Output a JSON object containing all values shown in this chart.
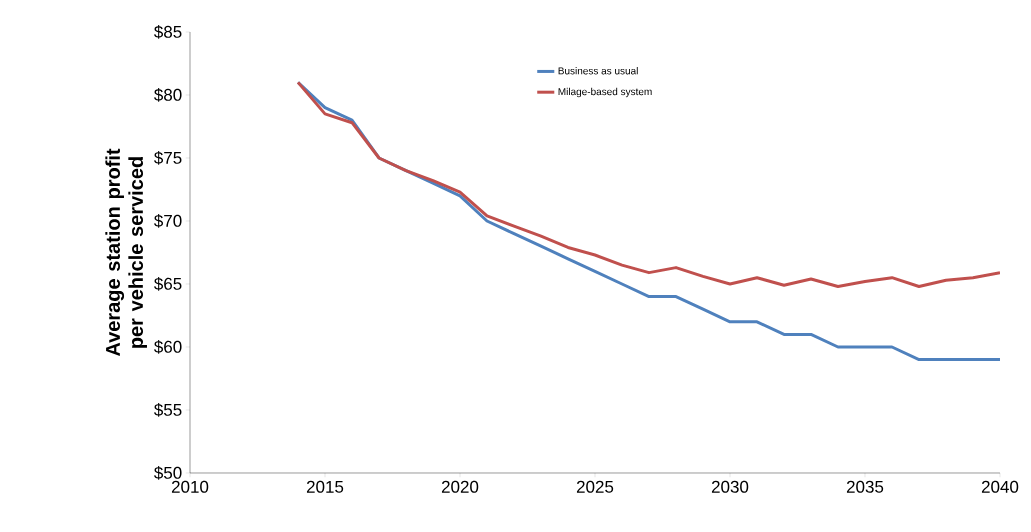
{
  "chart_data": {
    "type": "line",
    "ylabel": "Average station profit per vehicle serviced",
    "x": [
      2014,
      2015,
      2016,
      2017,
      2018,
      2019,
      2020,
      2021,
      2022,
      2023,
      2024,
      2025,
      2026,
      2027,
      2028,
      2029,
      2030,
      2031,
      2032,
      2033,
      2034,
      2035,
      2036,
      2037,
      2038,
      2039,
      2040
    ],
    "series": [
      {
        "name": "Business as usual",
        "color": "#4f81bd",
        "values": [
          81,
          79,
          78,
          75,
          74,
          73,
          72,
          70,
          69,
          68,
          67,
          66,
          65,
          64,
          64,
          63,
          62,
          62,
          61,
          61,
          60,
          60,
          60,
          59,
          59,
          59,
          59
        ]
      },
      {
        "name": "Milage-based system",
        "color": "#c0504d",
        "values": [
          81,
          78.5,
          77.8,
          75,
          74,
          73.2,
          72.3,
          70.4,
          69.6,
          68.8,
          67.9,
          67.3,
          66.5,
          65.9,
          66.3,
          65.6,
          65.0,
          65.5,
          64.9,
          65.4,
          64.8,
          65.2,
          65.5,
          64.8,
          65.3,
          65.5,
          65.9
        ]
      }
    ],
    "xlim": [
      2010,
      2040
    ],
    "xticks": [
      2010,
      2015,
      2020,
      2025,
      2030,
      2035,
      2040
    ],
    "ylim": [
      50,
      85
    ],
    "yticks": [
      {
        "value": 50,
        "label": "$50"
      },
      {
        "value": 55,
        "label": "$55"
      },
      {
        "value": 60,
        "label": "$60"
      },
      {
        "value": 65,
        "label": "$65"
      },
      {
        "value": 70,
        "label": "$70"
      },
      {
        "value": 75,
        "label": "$75"
      },
      {
        "value": 80,
        "label": "$80"
      },
      {
        "value": 85,
        "label": "$85"
      }
    ],
    "legend": "top",
    "marker": "none",
    "line_style": "solid",
    "grid": false
  }
}
